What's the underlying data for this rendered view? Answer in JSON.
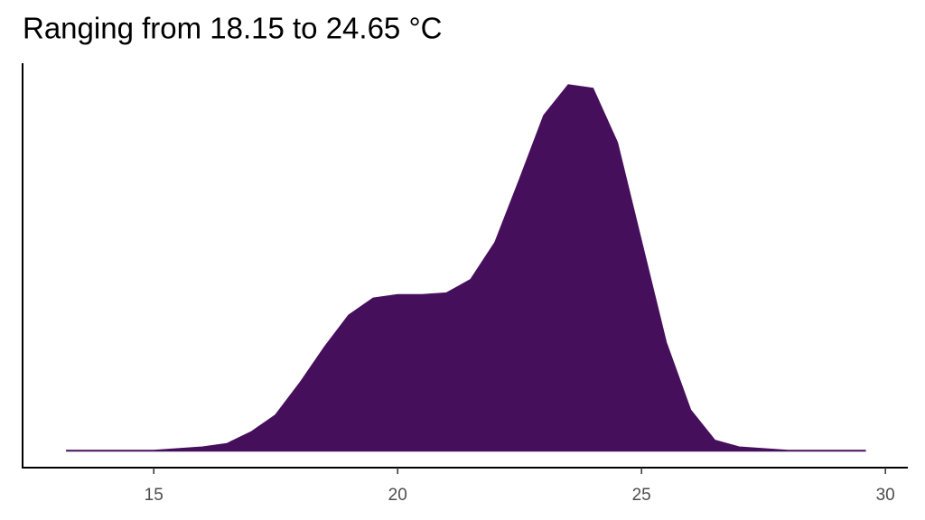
{
  "chart_data": {
    "type": "area",
    "title": "Ranging from 18.15 to 24.65 °C",
    "x": [
      13.2,
      15,
      16,
      16.5,
      17,
      17.5,
      18,
      18.5,
      19,
      19.5,
      20,
      20.5,
      21,
      21.5,
      22,
      22.5,
      23,
      23.5,
      24,
      24.5,
      25,
      25.5,
      26,
      26.5,
      27,
      28,
      29.6
    ],
    "values": [
      0,
      0,
      0.002,
      0.004,
      0.011,
      0.021,
      0.04,
      0.061,
      0.08,
      0.09,
      0.092,
      0.092,
      0.093,
      0.101,
      0.123,
      0.16,
      0.198,
      0.216,
      0.214,
      0.182,
      0.123,
      0.064,
      0.024,
      0.006,
      0.002,
      0,
      0
    ],
    "color": "#460f5c",
    "xlim": [
      12.31,
      30.46
    ],
    "xticks": [
      15,
      20,
      25,
      30
    ],
    "ylim": [
      -0.01,
      0.229
    ]
  }
}
